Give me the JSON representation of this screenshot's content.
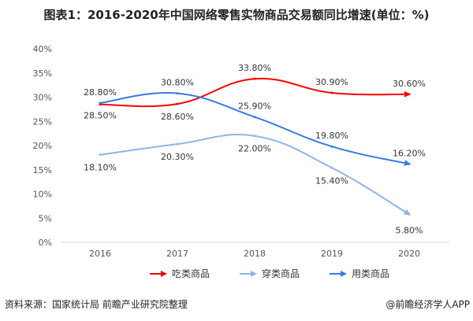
{
  "chart_data": {
    "type": "line",
    "title": "图表1：2016-2020年中国网络零售实物商品交易额同比增速(单位：%)",
    "categories": [
      "2016",
      "2017",
      "2018",
      "2019",
      "2020"
    ],
    "ylim": [
      0,
      40
    ],
    "yticks": [
      "0%",
      "5%",
      "10%",
      "15%",
      "20%",
      "25%",
      "30%",
      "35%",
      "40%"
    ],
    "grid": false,
    "legend": "bottom",
    "series": [
      {
        "name": "吃类商品",
        "color": "#ff0000",
        "values": [
          28.5,
          28.6,
          33.8,
          30.9,
          30.6
        ],
        "labels": [
          "28.50%",
          "28.60%",
          "33.80%",
          "30.90%",
          "30.60%"
        ]
      },
      {
        "name": "穿类商品",
        "color": "#8fb4ec",
        "values": [
          18.1,
          20.3,
          22.0,
          15.4,
          5.8
        ],
        "labels": [
          "18.10%",
          "20.30%",
          "22.00%",
          "15.40%",
          "5.80%"
        ]
      },
      {
        "name": "用类商品",
        "color": "#3a7ae0",
        "values": [
          28.8,
          30.8,
          25.9,
          19.8,
          16.2
        ],
        "labels": [
          "28.80%",
          "30.80%",
          "25.90%",
          "19.80%",
          "16.20%"
        ]
      }
    ]
  },
  "footer": {
    "source": "资料来源：国家统计局 前瞻产业研究院整理",
    "credit": "@前瞻经济学人APP"
  }
}
